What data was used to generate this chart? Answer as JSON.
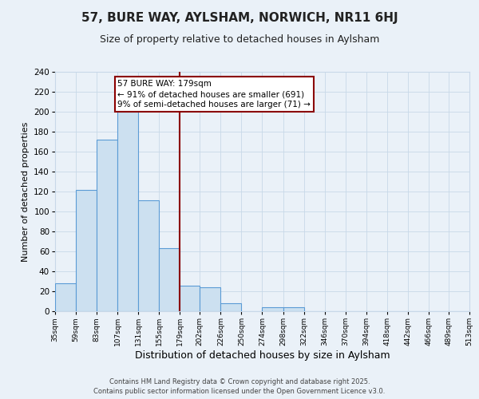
{
  "title": "57, BURE WAY, AYLSHAM, NORWICH, NR11 6HJ",
  "subtitle": "Size of property relative to detached houses in Aylsham",
  "xlabel": "Distribution of detached houses by size in Aylsham",
  "ylabel": "Number of detached properties",
  "bin_edges": [
    35,
    59,
    83,
    107,
    131,
    155,
    179,
    202,
    226,
    250,
    274,
    298,
    322,
    346,
    370,
    394,
    418,
    442,
    466,
    489,
    513
  ],
  "bar_heights": [
    28,
    122,
    172,
    200,
    111,
    63,
    26,
    24,
    8,
    0,
    4,
    4,
    0,
    0,
    0,
    0,
    0,
    0,
    0,
    0
  ],
  "bar_color": "#cce0f0",
  "bar_edge_color": "#5b9bd5",
  "property_size": 179,
  "vline_color": "#8b0000",
  "annotation_line1": "57 BURE WAY: 179sqm",
  "annotation_line2": "← 91% of detached houses are smaller (691)",
  "annotation_line3": "9% of semi-detached houses are larger (71) →",
  "annotation_box_color": "#ffffff",
  "annotation_border_color": "#8b0000",
  "ylim": [
    0,
    240
  ],
  "yticks": [
    0,
    20,
    40,
    60,
    80,
    100,
    120,
    140,
    160,
    180,
    200,
    220,
    240
  ],
  "tick_labels": [
    "35sqm",
    "59sqm",
    "83sqm",
    "107sqm",
    "131sqm",
    "155sqm",
    "179sqm",
    "202sqm",
    "226sqm",
    "250sqm",
    "274sqm",
    "298sqm",
    "322sqm",
    "346sqm",
    "370sqm",
    "394sqm",
    "418sqm",
    "442sqm",
    "466sqm",
    "489sqm",
    "513sqm"
  ],
  "background_color": "#eaf1f8",
  "grid_color": "#c8d8e8",
  "footer_text": "Contains HM Land Registry data © Crown copyright and database right 2025.\nContains public sector information licensed under the Open Government Licence v3.0.",
  "title_fontsize": 11,
  "subtitle_fontsize": 9,
  "xlabel_fontsize": 9,
  "ylabel_fontsize": 8,
  "annotation_fontsize": 7.5,
  "footer_fontsize": 6
}
